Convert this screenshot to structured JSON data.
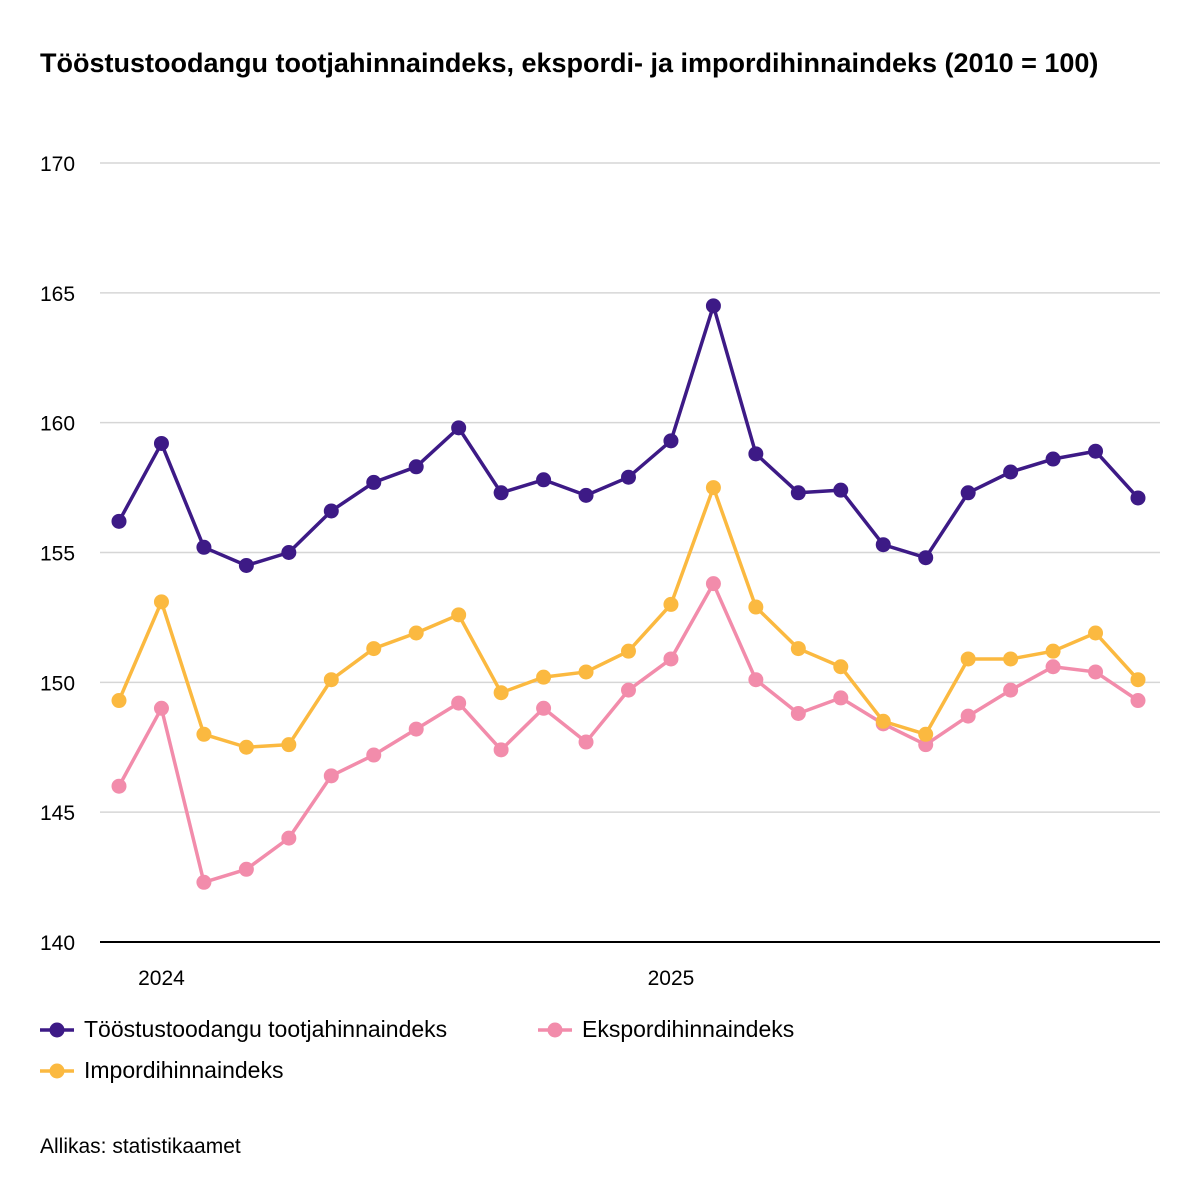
{
  "chart_data": {
    "type": "line",
    "title": "Tööstustoodangu tootjahinnaindeks, ekspordi- ja impordihinnaindeks (2010 = 100)",
    "xlabel": "",
    "ylabel": "",
    "x": [
      "2023-12",
      "2024-01",
      "2024-02",
      "2024-03",
      "2024-04",
      "2024-05",
      "2024-06",
      "2024-07",
      "2024-08",
      "2024-09",
      "2024-10",
      "2024-11",
      "2024-12",
      "2025-01",
      "2025-02",
      "2025-03",
      "2025-04",
      "2025-05",
      "2025-06",
      "2025-07",
      "2025-08",
      "2025-09",
      "2025-10",
      "2025-11",
      "2025-12"
    ],
    "x_tick_labels": [
      {
        "label": "2024",
        "at": "2024-01"
      },
      {
        "label": "2025",
        "at": "2025-01"
      }
    ],
    "ylim": [
      140,
      170
    ],
    "y_ticks": [
      "140",
      "145",
      "150",
      "155",
      "160",
      "165",
      "170"
    ],
    "grid": "horizontal",
    "legend_position": "bottom",
    "series": [
      {
        "name": "Tööstustoodangu tootjahinnaindeks",
        "color": "#3d1a86",
        "values": [
          156.2,
          159.2,
          155.2,
          154.5,
          155.0,
          156.6,
          157.7,
          158.3,
          159.8,
          157.3,
          157.8,
          157.2,
          157.9,
          159.3,
          164.5,
          158.8,
          157.3,
          157.4,
          155.3,
          154.8,
          157.3,
          158.1,
          158.6,
          158.9,
          157.1
        ]
      },
      {
        "name": "Ekspordihinnaindeks",
        "color": "#f28cab",
        "values": [
          146.0,
          149.0,
          142.3,
          142.8,
          144.0,
          146.4,
          147.2,
          148.2,
          149.2,
          147.4,
          149.0,
          147.7,
          149.7,
          150.9,
          153.8,
          150.1,
          148.8,
          149.4,
          148.4,
          147.6,
          148.7,
          149.7,
          150.6,
          150.4,
          149.3
        ]
      },
      {
        "name": "Impordihinnaindeks",
        "color": "#fbb940",
        "values": [
          149.3,
          153.1,
          148.0,
          147.5,
          147.6,
          150.1,
          151.3,
          151.9,
          152.6,
          149.6,
          150.2,
          150.4,
          151.2,
          153.0,
          157.5,
          152.9,
          151.3,
          150.6,
          148.5,
          148.0,
          150.9,
          150.9,
          151.2,
          151.9,
          150.1
        ]
      }
    ]
  },
  "source": "Allikas: statistikaamet"
}
